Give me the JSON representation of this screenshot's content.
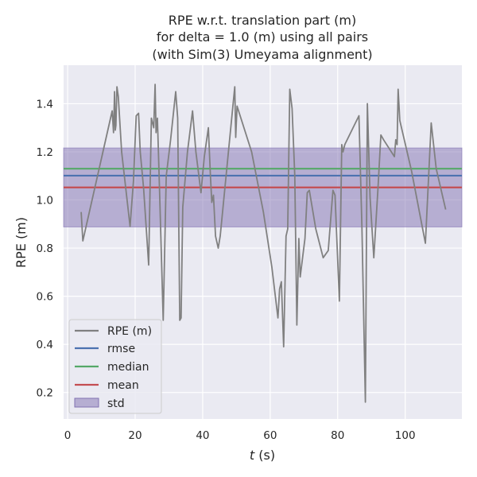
{
  "chart_data": {
    "type": "line",
    "title_lines": [
      "RPE w.r.t. translation part (m)",
      "for delta = 1.0 (m) using all pairs",
      "(with Sim(3) Umeyama alignment)"
    ],
    "xlabel_var": "t",
    "xlabel_unit": " (s)",
    "ylabel": "RPE (m)",
    "xlim": [
      -1.2,
      116.8
    ],
    "ylim": [
      0.09,
      1.56
    ],
    "x_ticks": [
      0,
      20,
      40,
      60,
      80,
      100
    ],
    "y_ticks": [
      0.2,
      0.4,
      0.6,
      0.8,
      1.0,
      1.2,
      1.4
    ],
    "y_tick_labels": [
      "0.2",
      "0.4",
      "0.6",
      "0.8",
      "1.0",
      "1.2",
      "1.4"
    ],
    "grid": true,
    "legend_position": "lower-left",
    "colors": {
      "background": "#eaeaf2",
      "grid": "#ffffff",
      "rpe": "#808080",
      "rmse": "#4c72b0",
      "median": "#55a868",
      "mean": "#c44e52",
      "std_fill": "#8172b2"
    },
    "series": [
      {
        "name": "RPE (m)",
        "x": [
          4,
          4.5,
          13.2,
          13.6,
          13.9,
          14.1,
          14.3,
          14.6,
          15,
          16,
          18.5,
          19.5,
          20.3,
          21,
          21.5,
          22.5,
          24,
          24.8,
          25.5,
          25.9,
          26.2,
          26.6,
          27.2,
          28.3,
          29.2,
          30.5,
          32,
          32.6,
          33.2,
          33.6,
          34.1,
          35.5,
          37,
          38,
          39.5,
          40.5,
          41.7,
          42.3,
          42.7,
          43.2,
          43.8,
          44.6,
          45.2,
          49.5,
          49.8,
          50.2,
          54.5,
          58,
          60.5,
          62.3,
          62.8,
          63.3,
          64,
          64.7,
          65.2,
          65.8,
          66.5,
          67.3,
          67.9,
          68.5,
          68.9,
          70.3,
          71,
          71.6,
          73.5,
          75.7,
          77.2,
          78.6,
          79.2,
          80.5,
          81.2,
          81.6,
          82.1,
          86.3,
          87.2,
          88.2,
          88.8,
          89.6,
          90.7,
          91.9,
          92.8,
          93.6,
          96.8,
          97.2,
          97.6,
          97.9,
          98.4,
          101.9,
          106,
          107.7,
          109.2,
          112
        ],
        "y": [
          0.95,
          0.83,
          1.37,
          1.28,
          1.45,
          1.29,
          1.31,
          1.47,
          1.43,
          1.2,
          0.89,
          1.08,
          1.35,
          1.36,
          1.2,
          1.05,
          0.73,
          1.34,
          1.3,
          1.48,
          1.28,
          1.34,
          1.05,
          0.5,
          1.1,
          1.25,
          1.45,
          1.34,
          0.5,
          0.51,
          0.97,
          1.2,
          1.37,
          1.2,
          1.03,
          1.18,
          1.3,
          1.1,
          0.99,
          1.02,
          0.85,
          0.8,
          0.85,
          1.47,
          1.26,
          1.39,
          1.2,
          0.95,
          0.72,
          0.51,
          0.63,
          0.66,
          0.39,
          0.85,
          0.88,
          1.46,
          1.38,
          1.1,
          0.48,
          0.84,
          0.68,
          0.84,
          1.03,
          1.04,
          0.88,
          0.76,
          0.79,
          1.04,
          1.02,
          0.58,
          1.23,
          1.2,
          1.23,
          1.35,
          0.88,
          0.16,
          1.4,
          1.01,
          0.76,
          1.04,
          1.27,
          1.25,
          1.18,
          1.25,
          1.23,
          1.46,
          1.33,
          1.12,
          0.82,
          1.32,
          1.13,
          0.96
        ]
      },
      {
        "name": "rmse",
        "value": 1.101
      },
      {
        "name": "median",
        "value": 1.13
      },
      {
        "name": "mean",
        "value": 1.052
      },
      {
        "name": "std",
        "lower": 0.888,
        "upper": 1.216
      }
    ]
  }
}
